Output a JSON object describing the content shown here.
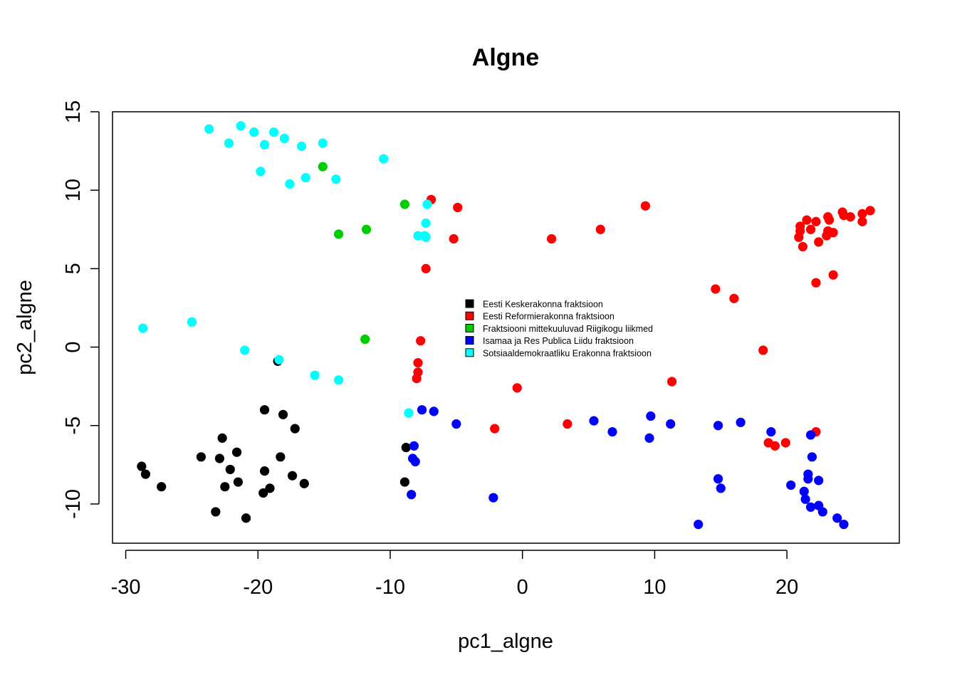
{
  "chart_data": {
    "type": "scatter",
    "title": "Algne",
    "xlabel": "pc1_algne",
    "ylabel": "pc2_algne",
    "xlim": [
      -31,
      28.5
    ],
    "ylim": [
      -12.5,
      15
    ],
    "xticks": [
      -30,
      -20,
      -10,
      0,
      10,
      20
    ],
    "yticks": [
      -10,
      -5,
      0,
      5,
      10,
      15
    ],
    "xtick_labels": [
      "-30",
      "-20",
      "-10",
      "0",
      "10",
      "20"
    ],
    "ytick_labels": [
      "-10",
      "-5",
      "0",
      "5",
      "10",
      "15"
    ],
    "grid": false,
    "legend_position": "center-right",
    "series": [
      {
        "name": "Eesti Keskerakonna fraktsioon",
        "color": "#000000",
        "points": [
          [
            -28.8,
            -7.6
          ],
          [
            -28.5,
            -8.1
          ],
          [
            -27.3,
            -8.9
          ],
          [
            -24.3,
            -7.0
          ],
          [
            -23.2,
            -10.5
          ],
          [
            -22.9,
            -7.1
          ],
          [
            -22.7,
            -5.8
          ],
          [
            -22.5,
            -8.9
          ],
          [
            -22.1,
            -7.8
          ],
          [
            -21.6,
            -6.7
          ],
          [
            -21.5,
            -8.6
          ],
          [
            -20.9,
            -10.9
          ],
          [
            -19.6,
            -9.3
          ],
          [
            -19.5,
            -7.9
          ],
          [
            -19.5,
            -4.0
          ],
          [
            -19.1,
            -9.0
          ],
          [
            -18.5,
            -0.9
          ],
          [
            -18.3,
            -7.0
          ],
          [
            -18.1,
            -4.3
          ],
          [
            -17.4,
            -8.2
          ],
          [
            -17.2,
            -5.2
          ],
          [
            -16.5,
            -8.7
          ],
          [
            -8.9,
            -8.6
          ],
          [
            -8.8,
            -6.4
          ]
        ]
      },
      {
        "name": "Eesti Reformierakonna fraktsioon",
        "color": "#ff0000",
        "points": [
          [
            -7.3,
            5.0
          ],
          [
            -6.9,
            9.4
          ],
          [
            -5.2,
            6.9
          ],
          [
            -4.9,
            8.9
          ],
          [
            -7.7,
            0.4
          ],
          [
            -7.9,
            -1.0
          ],
          [
            -7.9,
            -1.6
          ],
          [
            -8.0,
            -2.0
          ],
          [
            -2.1,
            -5.2
          ],
          [
            -0.4,
            -2.6
          ],
          [
            2.2,
            6.9
          ],
          [
            3.4,
            -4.9
          ],
          [
            5.9,
            7.5
          ],
          [
            9.3,
            9.0
          ],
          [
            11.3,
            -2.2
          ],
          [
            14.6,
            3.7
          ],
          [
            16.0,
            3.1
          ],
          [
            18.2,
            -0.2
          ],
          [
            18.6,
            -6.1
          ],
          [
            19.1,
            -6.3
          ],
          [
            19.9,
            -6.1
          ],
          [
            20.9,
            7.0
          ],
          [
            21.0,
            7.7
          ],
          [
            21.0,
            7.4
          ],
          [
            21.2,
            6.4
          ],
          [
            21.5,
            8.1
          ],
          [
            21.8,
            7.5
          ],
          [
            22.2,
            8.0
          ],
          [
            22.2,
            4.1
          ],
          [
            22.2,
            -5.4
          ],
          [
            22.4,
            6.7
          ],
          [
            23.0,
            7.1
          ],
          [
            23.1,
            8.3
          ],
          [
            23.1,
            7.4
          ],
          [
            23.2,
            8.1
          ],
          [
            23.5,
            7.3
          ],
          [
            23.5,
            4.6
          ],
          [
            24.2,
            8.6
          ],
          [
            24.3,
            8.4
          ],
          [
            24.8,
            8.3
          ],
          [
            25.7,
            8.0
          ],
          [
            25.7,
            8.5
          ],
          [
            26.3,
            8.7
          ]
        ]
      },
      {
        "name": "Fraktsiooni mittekuuluvad Riigikogu liikmed",
        "color": "#00cd00",
        "points": [
          [
            -15.1,
            11.5
          ],
          [
            -13.9,
            7.2
          ],
          [
            -11.8,
            7.5
          ],
          [
            -11.9,
            0.5
          ],
          [
            -8.9,
            9.1
          ]
        ]
      },
      {
        "name": "Isamaa ja Res Publica Liidu fraktsioon",
        "color": "#0000ff",
        "points": [
          [
            -8.4,
            -9.4
          ],
          [
            -8.2,
            -6.3
          ],
          [
            -8.3,
            -7.1
          ],
          [
            -8.1,
            -7.3
          ],
          [
            -7.6,
            -4.0
          ],
          [
            -6.7,
            -4.1
          ],
          [
            -5.0,
            -4.9
          ],
          [
            -2.2,
            -9.6
          ],
          [
            5.4,
            -4.7
          ],
          [
            6.8,
            -5.4
          ],
          [
            9.6,
            -5.8
          ],
          [
            9.7,
            -4.4
          ],
          [
            11.2,
            -4.9
          ],
          [
            13.3,
            -11.3
          ],
          [
            14.8,
            -5.0
          ],
          [
            14.8,
            -8.4
          ],
          [
            15.0,
            -9.0
          ],
          [
            16.5,
            -4.8
          ],
          [
            18.8,
            -5.4
          ],
          [
            20.3,
            -8.8
          ],
          [
            21.3,
            -9.2
          ],
          [
            21.4,
            -9.7
          ],
          [
            21.6,
            -8.1
          ],
          [
            21.6,
            -8.4
          ],
          [
            21.8,
            -10.2
          ],
          [
            21.8,
            -5.6
          ],
          [
            21.9,
            -7.0
          ],
          [
            22.4,
            -8.5
          ],
          [
            22.4,
            -10.1
          ],
          [
            22.7,
            -10.5
          ],
          [
            23.8,
            -10.9
          ],
          [
            24.3,
            -11.3
          ]
        ]
      },
      {
        "name": "Sotsiaaldemokraatliku Erakonna fraktsioon",
        "color": "#00ffff",
        "points": [
          [
            -28.7,
            1.2
          ],
          [
            -25.0,
            1.6
          ],
          [
            -23.7,
            13.9
          ],
          [
            -22.2,
            13.0
          ],
          [
            -21.3,
            14.1
          ],
          [
            -21.0,
            -0.2
          ],
          [
            -20.3,
            13.7
          ],
          [
            -19.8,
            11.2
          ],
          [
            -19.5,
            12.9
          ],
          [
            -18.8,
            13.7
          ],
          [
            -18.4,
            -0.8
          ],
          [
            -18.0,
            13.3
          ],
          [
            -17.6,
            10.4
          ],
          [
            -16.7,
            12.8
          ],
          [
            -16.4,
            10.8
          ],
          [
            -15.7,
            -1.8
          ],
          [
            -15.1,
            13.0
          ],
          [
            -14.1,
            10.7
          ],
          [
            -13.9,
            -2.1
          ],
          [
            -10.5,
            12.0
          ],
          [
            -8.6,
            -4.2
          ],
          [
            -7.9,
            7.1
          ],
          [
            -7.4,
            7.1
          ],
          [
            -7.3,
            7.0
          ],
          [
            -7.3,
            7.9
          ],
          [
            -7.2,
            9.1
          ]
        ]
      }
    ]
  }
}
